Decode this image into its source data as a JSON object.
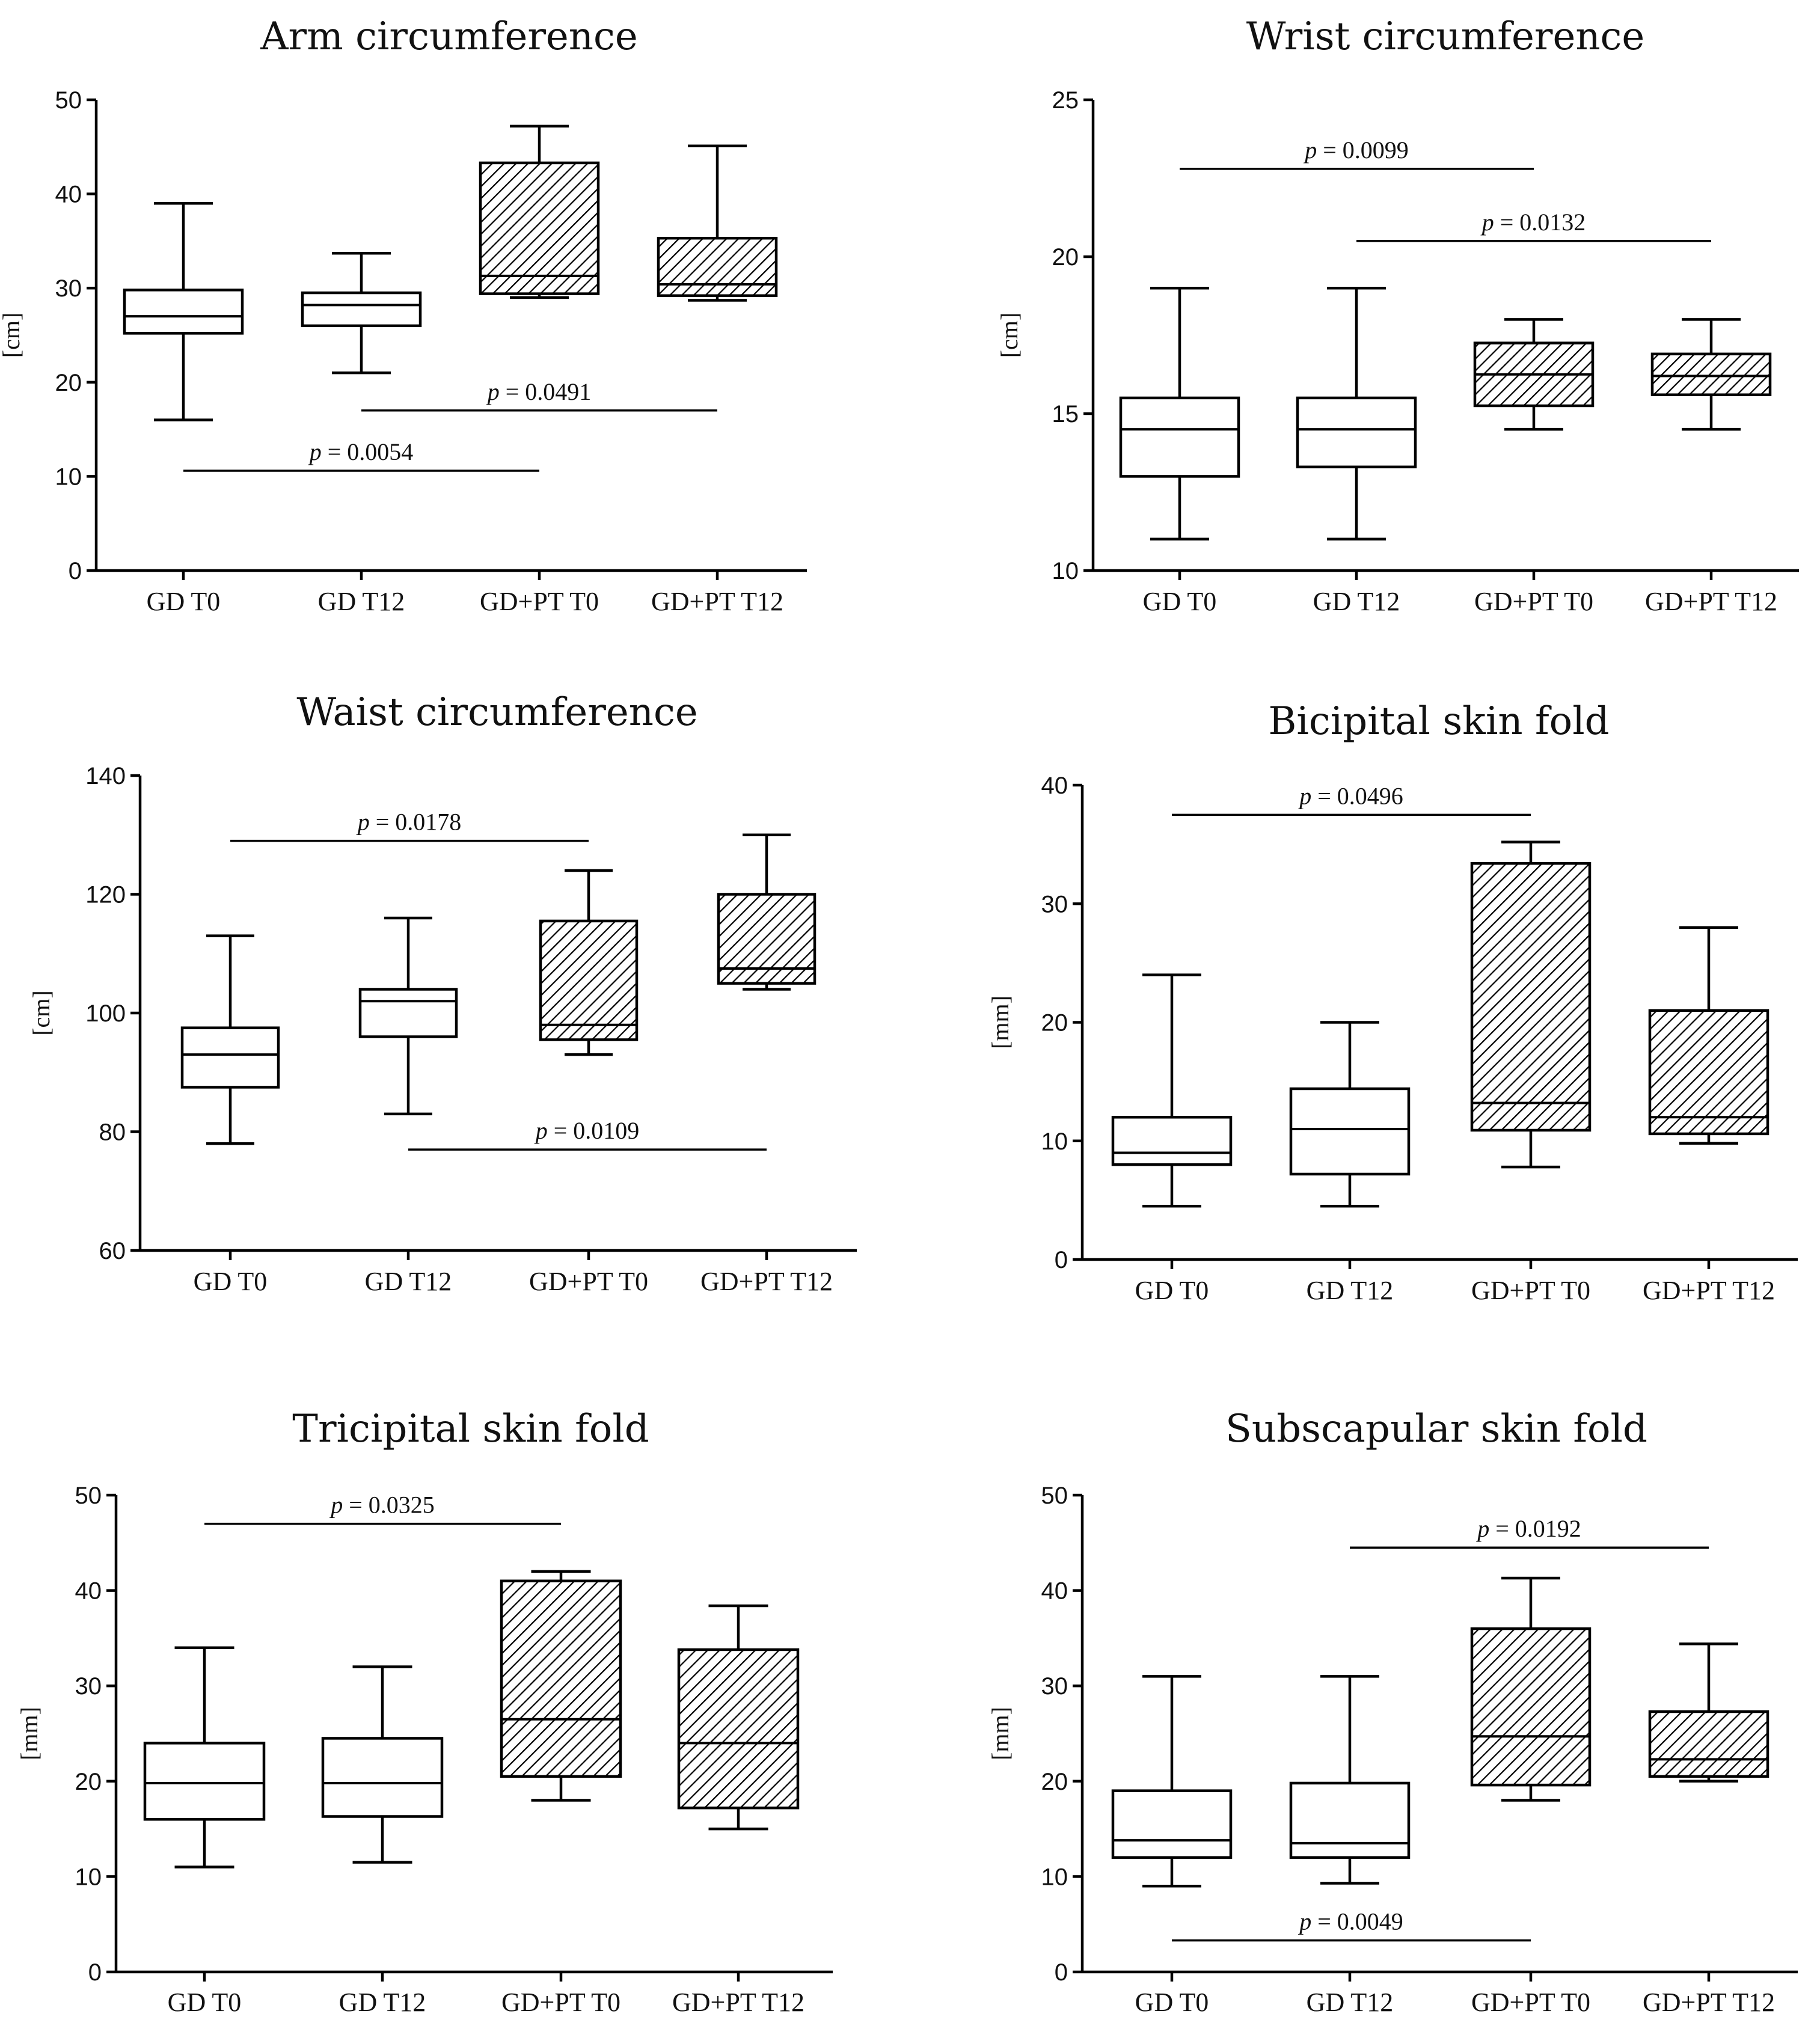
{
  "figure": {
    "colors": {
      "ink": "#000000",
      "background": "#ffffff"
    },
    "plain_fill_name": "white",
    "hatched_fill_name": "diagonal-hatch"
  },
  "chart_data": [
    {
      "type": "box",
      "title": "Arm circumference",
      "ylabel": "[cm]",
      "xlabel": "",
      "ylim": [
        0,
        50
      ],
      "yticks": [
        0,
        10,
        20,
        30,
        40,
        50
      ],
      "categories": [
        "GD T0",
        "GD T12",
        "GD+PT T0",
        "GD+PT T12"
      ],
      "boxes": [
        {
          "group": "GD T0",
          "min": 16,
          "q1": 25.2,
          "median": 27,
          "q3": 29.8,
          "max": 39,
          "fill": "plain"
        },
        {
          "group": "GD T12",
          "min": 21,
          "q1": 26,
          "median": 28.2,
          "q3": 29.5,
          "max": 33.7,
          "fill": "plain"
        },
        {
          "group": "GD+PT T0",
          "min": 29,
          "q1": 29.4,
          "median": 31.3,
          "q3": 43.3,
          "max": 47.2,
          "fill": "hatched"
        },
        {
          "group": "GD+PT T12",
          "min": 28.7,
          "q1": 29.2,
          "median": 30.4,
          "q3": 35.3,
          "max": 45.1,
          "fill": "hatched"
        }
      ],
      "comparisons": [
        {
          "label": "p = 0.0491",
          "from": 1,
          "to": 3,
          "y": 17
        },
        {
          "label": "p = 0.0054",
          "from": 0,
          "to": 2,
          "y": 10.6
        }
      ]
    },
    {
      "type": "box",
      "title": "Wrist circumference",
      "ylabel": "[cm]",
      "xlabel": "",
      "ylim": [
        10,
        25
      ],
      "yticks": [
        10,
        15,
        20,
        25
      ],
      "categories": [
        "GD T0",
        "GD T12",
        "GD+PT T0",
        "GD+PT T12"
      ],
      "boxes": [
        {
          "group": "GD T0",
          "min": 11,
          "q1": 13,
          "median": 14.5,
          "q3": 15.5,
          "max": 19,
          "fill": "plain"
        },
        {
          "group": "GD T12",
          "min": 11,
          "q1": 13.3,
          "median": 14.5,
          "q3": 15.5,
          "max": 19,
          "fill": "plain"
        },
        {
          "group": "GD+PT T0",
          "min": 14.5,
          "q1": 15.25,
          "median": 16.25,
          "q3": 17.25,
          "max": 18,
          "fill": "hatched"
        },
        {
          "group": "GD+PT T12",
          "min": 14.5,
          "q1": 15.6,
          "median": 16.2,
          "q3": 16.9,
          "max": 18,
          "fill": "hatched"
        }
      ],
      "comparisons": [
        {
          "label": "p = 0.0099",
          "from": 0,
          "to": 2,
          "y": 22.8
        },
        {
          "label": "p = 0.0132",
          "from": 1,
          "to": 3,
          "y": 20.5
        }
      ]
    },
    {
      "type": "box",
      "title": "Waist circumference",
      "ylabel": "[cm]",
      "xlabel": "",
      "ylim": [
        60,
        140
      ],
      "yticks": [
        60,
        80,
        100,
        120,
        140
      ],
      "categories": [
        "GD T0",
        "GD T12",
        "GD+PT T0",
        "GD+PT T12"
      ],
      "boxes": [
        {
          "group": "GD T0",
          "min": 78,
          "q1": 87.5,
          "median": 93,
          "q3": 97.5,
          "max": 113,
          "fill": "plain"
        },
        {
          "group": "GD T12",
          "min": 83,
          "q1": 96,
          "median": 102,
          "q3": 104,
          "max": 116,
          "fill": "plain"
        },
        {
          "group": "GD+PT T0",
          "min": 93,
          "q1": 95.5,
          "median": 98,
          "q3": 115.5,
          "max": 124,
          "fill": "hatched"
        },
        {
          "group": "GD+PT T12",
          "min": 104,
          "q1": 105,
          "median": 107.5,
          "q3": 120,
          "max": 130,
          "fill": "hatched"
        }
      ],
      "comparisons": [
        {
          "label": "p = 0.0178",
          "from": 0,
          "to": 2,
          "y": 129
        },
        {
          "label": "p = 0.0109",
          "from": 1,
          "to": 3,
          "y": 77
        }
      ]
    },
    {
      "type": "box",
      "title": "Bicipital skin fold",
      "ylabel": "[mm]",
      "xlabel": "",
      "ylim": [
        0,
        40
      ],
      "yticks": [
        0,
        10,
        20,
        30,
        40
      ],
      "categories": [
        "GD T0",
        "GD T12",
        "GD+PT T0",
        "GD+PT T12"
      ],
      "boxes": [
        {
          "group": "GD T0",
          "min": 4.5,
          "q1": 8,
          "median": 9,
          "q3": 12,
          "max": 24,
          "fill": "plain"
        },
        {
          "group": "GD T12",
          "min": 4.5,
          "q1": 7.2,
          "median": 11,
          "q3": 14.4,
          "max": 20,
          "fill": "plain"
        },
        {
          "group": "GD+PT T0",
          "min": 7.8,
          "q1": 10.9,
          "median": 13.2,
          "q3": 33.4,
          "max": 35.2,
          "fill": "hatched"
        },
        {
          "group": "GD+PT T12",
          "min": 9.8,
          "q1": 10.6,
          "median": 12,
          "q3": 21,
          "max": 28,
          "fill": "hatched"
        }
      ],
      "comparisons": [
        {
          "label": "p = 0.0496",
          "from": 0,
          "to": 2,
          "y": 37.5
        }
      ]
    },
    {
      "type": "box",
      "title": "Tricipital skin fold",
      "ylabel": "[mm]",
      "xlabel": "",
      "ylim": [
        0,
        50
      ],
      "yticks": [
        0,
        10,
        20,
        30,
        40,
        50
      ],
      "categories": [
        "GD T0",
        "GD T12",
        "GD+PT T0",
        "GD+PT T12"
      ],
      "boxes": [
        {
          "group": "GD T0",
          "min": 11,
          "q1": 16,
          "median": 19.8,
          "q3": 24,
          "max": 34,
          "fill": "plain"
        },
        {
          "group": "GD T12",
          "min": 11.5,
          "q1": 16.3,
          "median": 19.8,
          "q3": 24.5,
          "max": 32,
          "fill": "plain"
        },
        {
          "group": "GD+PT T0",
          "min": 18,
          "q1": 20.5,
          "median": 26.5,
          "q3": 41,
          "max": 42,
          "fill": "hatched"
        },
        {
          "group": "GD+PT T12",
          "min": 15,
          "q1": 17.2,
          "median": 24,
          "q3": 33.8,
          "max": 38.4,
          "fill": "hatched"
        }
      ],
      "comparisons": [
        {
          "label": "p = 0.0325",
          "from": 0,
          "to": 2,
          "y": 47
        }
      ]
    },
    {
      "type": "box",
      "title": "Subscapular skin fold",
      "ylabel": "[mm]",
      "xlabel": "",
      "ylim": [
        0,
        50
      ],
      "yticks": [
        0,
        10,
        20,
        30,
        40,
        50
      ],
      "categories": [
        "GD T0",
        "GD T12",
        "GD+PT T0",
        "GD+PT T12"
      ],
      "boxes": [
        {
          "group": "GD T0",
          "min": 9,
          "q1": 12,
          "median": 13.8,
          "q3": 19,
          "max": 31,
          "fill": "plain"
        },
        {
          "group": "GD T12",
          "min": 9.3,
          "q1": 12,
          "median": 13.5,
          "q3": 19.8,
          "max": 31,
          "fill": "plain"
        },
        {
          "group": "GD+PT T0",
          "min": 18,
          "q1": 19.6,
          "median": 24.7,
          "q3": 36,
          "max": 41.3,
          "fill": "hatched"
        },
        {
          "group": "GD+PT T12",
          "min": 20,
          "q1": 20.5,
          "median": 22.3,
          "q3": 27.3,
          "max": 34.4,
          "fill": "hatched"
        }
      ],
      "comparisons": [
        {
          "label": "p = 0.0192",
          "from": 1,
          "to": 3,
          "y": 44.5
        },
        {
          "label": "p = 0.0049",
          "from": 0,
          "to": 2,
          "y": 3.3
        }
      ]
    }
  ]
}
